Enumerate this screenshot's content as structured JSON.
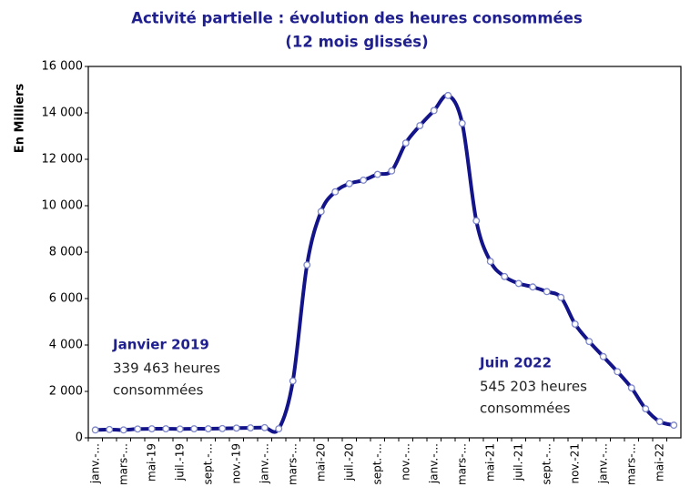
{
  "chart_data": {
    "type": "line",
    "title": [
      "Activité partielle : évolution des heures consommées",
      "(12 mois glissés)"
    ],
    "y_label": "En Milliers",
    "annotations": [
      {
        "title": "Janvier 2019",
        "lines": [
          "339 463 heures",
          "consommées"
        ]
      },
      {
        "title": "Juin 2022",
        "lines": [
          "545 203 heures",
          "consommées"
        ]
      }
    ],
    "categories": [
      "janv.-...",
      null,
      "mars-...",
      null,
      "mai-19",
      null,
      "juil.-19",
      null,
      "sept.-...",
      null,
      "nov.-19",
      null,
      "janv.-...",
      null,
      "mars-...",
      null,
      "mai-20",
      null,
      "juil.-20",
      null,
      "sept.-...",
      null,
      "nov.-...",
      null,
      "janv.-...",
      null,
      "mars-...",
      null,
      "mai-21",
      null,
      "juil.-21",
      null,
      "sept.-...",
      null,
      "nov.-21",
      null,
      "janv.-...",
      null,
      "mars-...",
      null,
      "mai-22",
      null
    ],
    "series": [
      {
        "name": "Heures consommées",
        "color": "#13138a",
        "values": [
          339,
          360,
          340,
          380,
          390,
          390,
          380,
          390,
          390,
          400,
          420,
          430,
          440,
          390,
          2450,
          7450,
          9750,
          10600,
          10950,
          11100,
          11350,
          11500,
          12700,
          13450,
          14100,
          14750,
          13550,
          9350,
          7600,
          6950,
          6650,
          6500,
          6300,
          6050,
          4900,
          4150,
          3500,
          2850,
          2150,
          1250,
          700,
          545
        ]
      }
    ],
    "ylim": [
      0,
      16000
    ],
    "yticks": [
      0,
      {
        "value": 2000,
        "label": "2 000"
      },
      {
        "value": 4000,
        "label": "4 000"
      },
      {
        "value": 6000,
        "label": "6 000"
      },
      {
        "value": 8000,
        "label": "8 000"
      },
      {
        "value": 10000,
        "label": "10 000"
      },
      {
        "value": 12000,
        "label": "12 000"
      },
      {
        "value": 14000,
        "label": "14 000"
      },
      {
        "value": 16000,
        "label": "16 000"
      }
    ],
    "grid": false
  }
}
